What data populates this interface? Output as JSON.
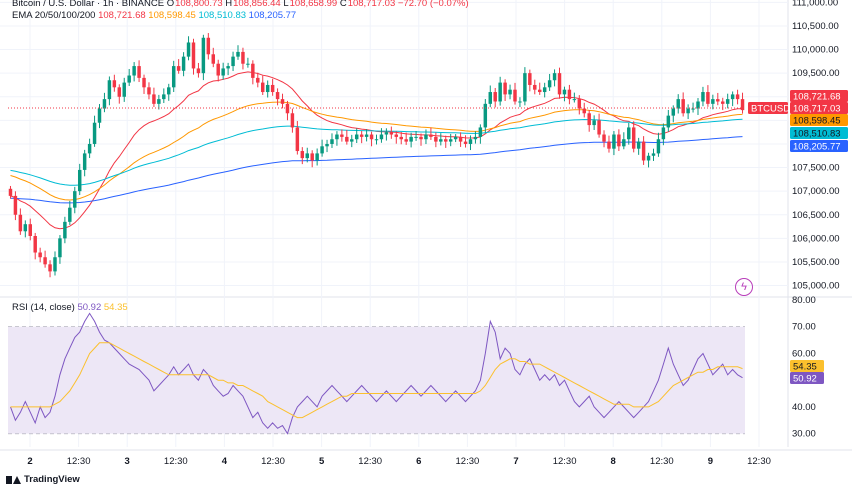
{
  "header": {
    "symbol": "Bitcoin / U.S. Dollar · 1h · BINANCE",
    "o_label": "O",
    "o": "108,800.73",
    "h_label": "H",
    "h": "108,856.44",
    "l_label": "L",
    "l": "108,658.99",
    "c_label": "C",
    "c": "108,717.03",
    "change": "−72.70 (−0.07%)",
    "ema_label": "EMA 20/50/100/200",
    "ema20": "108,721.68",
    "ema50": "108,598.45",
    "ema100": "108,510.83",
    "ema200": "108,205.77"
  },
  "rsi_header": {
    "label": "RSI (14, close)",
    "rsi": "50.92",
    "rsi_ma": "54.35"
  },
  "footer": {
    "brand": "TradingView"
  },
  "colors": {
    "up": "#089981",
    "down": "#f23645",
    "ema20": "#f23645",
    "ema50": "#ff9800",
    "ema100": "#00bcd4",
    "ema200": "#2962ff",
    "rsi": "#7e57c2",
    "rsi_ma": "#fbc02d",
    "rsi_band": "#ede7f6",
    "tag_btc": "#f23645",
    "grid": "#f0f3fa"
  },
  "chart_data": [
    {
      "type": "candlestick",
      "title": "Bitcoin / U.S. Dollar · 1h · BINANCE",
      "price_axis": {
        "ticks": [
          "111,000.00",
          "110,500.00",
          "110,000.00",
          "109,500.00",
          "109,000.00",
          "108,500.00",
          "108,000.00",
          "107,500.00",
          "107,000.00",
          "106,500.00",
          "106,000.00",
          "105,500.00",
          "105,000.00"
        ],
        "tick_values": [
          111000,
          110500,
          110000,
          109500,
          109000,
          108500,
          108000,
          107500,
          107000,
          106500,
          106000,
          105500,
          105000
        ],
        "range": [
          104800,
          111050
        ]
      },
      "time_axis": {
        "ticks": [
          "2",
          "12:30",
          "3",
          "12:30",
          "4",
          "12:30",
          "5",
          "12:30",
          "6",
          "12:30",
          "7",
          "12:30",
          "8",
          "12:30",
          "9",
          "12:30"
        ],
        "bold": [
          "2",
          "3",
          "4",
          "5",
          "6",
          "7",
          "8",
          "9"
        ]
      },
      "close_series": [
        106900,
        106500,
        106150,
        106300,
        106050,
        105700,
        105600,
        105450,
        105300,
        105600,
        106000,
        106350,
        106650,
        107000,
        107450,
        107800,
        108000,
        108450,
        108750,
        108950,
        109350,
        109200,
        109000,
        109300,
        109450,
        109650,
        109400,
        109200,
        109050,
        108850,
        108950,
        109050,
        109200,
        109650,
        109550,
        109850,
        110150,
        109600,
        109500,
        110250,
        109900,
        109700,
        109450,
        109600,
        109650,
        109850,
        109950,
        109700,
        109700,
        109400,
        109300,
        109100,
        109250,
        109100,
        108950,
        108850,
        108650,
        108350,
        107850,
        107700,
        107800,
        107650,
        107800,
        107950,
        108000,
        108100,
        108200,
        108150,
        108050,
        108100,
        108200,
        108150,
        108200,
        108100,
        108100,
        108200,
        108250,
        108200,
        108150,
        108100,
        108050,
        108150,
        108150,
        108100,
        108200,
        108150,
        108050,
        108100,
        108050,
        108100,
        108150,
        108050,
        108000,
        108100,
        108150,
        108350,
        108850,
        109100,
        108900,
        109300,
        109050,
        109150,
        108900,
        108900,
        109500,
        109250,
        109150,
        109100,
        109200,
        109350,
        109500,
        109050,
        109150,
        108950,
        108950,
        108750,
        108650,
        108400,
        108500,
        108200,
        108050,
        107900,
        108200,
        107950,
        108100,
        108350,
        107900,
        108050,
        107650,
        107750,
        107800,
        108100,
        108350,
        108600,
        108750,
        108950,
        108650,
        108750,
        108750,
        108900,
        109100,
        108850,
        108950,
        108900,
        108850,
        108950,
        109050,
        108950,
        108717
      ],
      "last_price": "108,717.03",
      "tags": [
        {
          "text": "108,721.68",
          "series": "ema20"
        },
        {
          "text": "BTCUSD",
          "series": "symbol"
        },
        {
          "text": "108,717.03",
          "series": "close"
        },
        {
          "text": "108,598.45",
          "series": "ema50"
        },
        {
          "text": "108,510.83",
          "series": "ema100"
        },
        {
          "text": "108,205.77",
          "series": "ema200"
        }
      ],
      "ema_periods": [
        20,
        50,
        100,
        200
      ],
      "ema_seed": {
        "ema50": 107350,
        "ema100": 107450,
        "ema200": 106850
      }
    },
    {
      "type": "line",
      "title": "RSI (14, close)",
      "ylim": [
        25,
        80
      ],
      "axis_ticks": [
        "80.00",
        "70.00",
        "60.00",
        "50.00",
        "40.00",
        "30.00"
      ],
      "tick_values": [
        80,
        70,
        60,
        50,
        40,
        30
      ],
      "band": [
        30,
        70
      ],
      "series": [
        {
          "name": "RSI",
          "values": [
            40,
            35,
            38,
            42,
            38,
            34,
            40,
            36,
            38,
            44,
            52,
            58,
            62,
            66,
            68,
            72,
            75,
            72,
            68,
            65,
            64,
            62,
            60,
            58,
            56,
            55,
            54,
            52,
            50,
            46,
            48,
            50,
            52,
            55,
            52,
            54,
            56,
            52,
            50,
            54,
            52,
            48,
            46,
            44,
            45,
            48,
            46,
            44,
            40,
            36,
            38,
            34,
            32,
            34,
            32,
            33,
            30,
            36,
            40,
            42,
            44,
            42,
            40,
            44,
            46,
            48,
            46,
            44,
            42,
            44,
            46,
            48,
            46,
            44,
            42,
            44,
            46,
            44,
            42,
            44,
            46,
            48,
            46,
            44,
            46,
            48,
            46,
            44,
            42,
            44,
            46,
            44,
            42,
            44,
            46,
            50,
            60,
            72,
            68,
            58,
            62,
            60,
            54,
            52,
            56,
            58,
            54,
            50,
            52,
            50,
            52,
            48,
            50,
            46,
            42,
            40,
            42,
            44,
            40,
            38,
            36,
            38,
            40,
            42,
            40,
            38,
            36,
            38,
            40,
            42,
            46,
            50,
            56,
            62,
            56,
            52,
            48,
            50,
            54,
            58,
            60,
            56,
            52,
            54,
            56,
            52,
            54,
            52,
            50.92
          ]
        },
        {
          "name": "RSI MA",
          "values": [
            40,
            40,
            40,
            40,
            40,
            40,
            40,
            40,
            40,
            41,
            42,
            44,
            46,
            49,
            52,
            56,
            60,
            62,
            64,
            64,
            64,
            63,
            62,
            61,
            60,
            59,
            58,
            57,
            56,
            55,
            54,
            53,
            52,
            52,
            52,
            52,
            52,
            52,
            52,
            52,
            52,
            51,
            50,
            50,
            49,
            49,
            48,
            48,
            47,
            46,
            45,
            44,
            42,
            41,
            40,
            39,
            38,
            37,
            36,
            36,
            37,
            38,
            39,
            40,
            41,
            42,
            43,
            44,
            44,
            45,
            45,
            45,
            45,
            45,
            45,
            45,
            45,
            45,
            45,
            45,
            45,
            45,
            45,
            45,
            45,
            45,
            45,
            45,
            45,
            45,
            45,
            45,
            45,
            45,
            45,
            46,
            48,
            51,
            54,
            56,
            57,
            58,
            58,
            57,
            57,
            56,
            56,
            56,
            55,
            54,
            53,
            52,
            51,
            50,
            49,
            48,
            47,
            46,
            45,
            44,
            43,
            42,
            41,
            41,
            41,
            41,
            40,
            40,
            40,
            40,
            41,
            42,
            44,
            46,
            48,
            49,
            50,
            51,
            52,
            53,
            53,
            54,
            54,
            55,
            55,
            55,
            55,
            55,
            54.35
          ]
        }
      ],
      "tags": [
        {
          "text": "54.35",
          "series": "RSI MA"
        },
        {
          "text": "50.92",
          "series": "RSI"
        }
      ]
    }
  ]
}
